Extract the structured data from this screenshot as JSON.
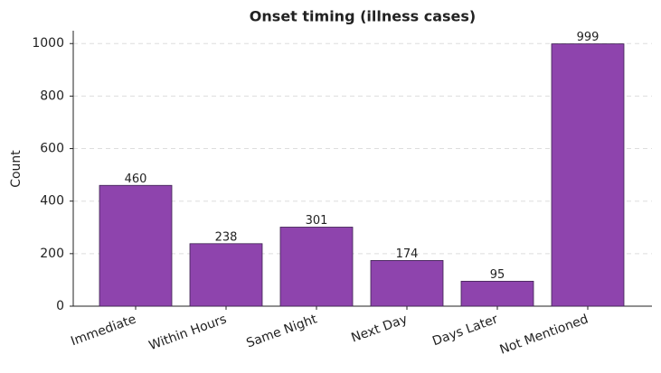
{
  "chart_data": {
    "type": "bar",
    "title": "Onset timing (illness cases)",
    "y_label": "Count",
    "categories": [
      "Immediate",
      "Within Hours",
      "Same Night",
      "Next Day",
      "Days Later",
      "Not Mentioned"
    ],
    "values": [
      460,
      238,
      301,
      174,
      95,
      999
    ],
    "color": "#8e44ad",
    "ylim": [
      0,
      1049
    ],
    "yticks": [
      0,
      200,
      400,
      600,
      800,
      1000
    ],
    "grid": true
  }
}
